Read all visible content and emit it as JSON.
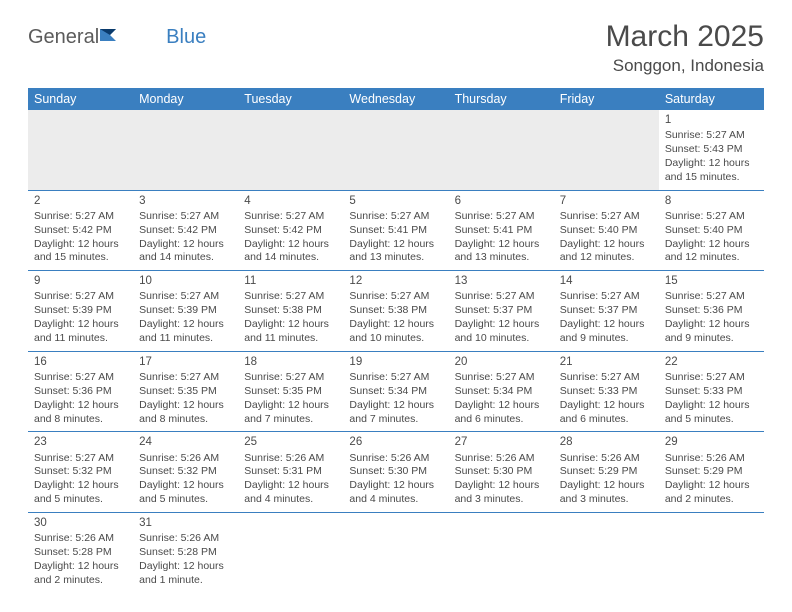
{
  "logo": {
    "text1": "General",
    "text2": "Blue"
  },
  "title": "March 2025",
  "location": "Songgon, Indonesia",
  "colors": {
    "header_bg": "#3a7fc0",
    "text": "#4a4a4a",
    "blank_bg": "#ececec"
  },
  "days": [
    "Sunday",
    "Monday",
    "Tuesday",
    "Wednesday",
    "Thursday",
    "Friday",
    "Saturday"
  ],
  "weeks": [
    [
      null,
      null,
      null,
      null,
      null,
      null,
      {
        "n": "1",
        "sr": "Sunrise: 5:27 AM",
        "ss": "Sunset: 5:43 PM",
        "dl": "Daylight: 12 hours and 15 minutes."
      }
    ],
    [
      {
        "n": "2",
        "sr": "Sunrise: 5:27 AM",
        "ss": "Sunset: 5:42 PM",
        "dl": "Daylight: 12 hours and 15 minutes."
      },
      {
        "n": "3",
        "sr": "Sunrise: 5:27 AM",
        "ss": "Sunset: 5:42 PM",
        "dl": "Daylight: 12 hours and 14 minutes."
      },
      {
        "n": "4",
        "sr": "Sunrise: 5:27 AM",
        "ss": "Sunset: 5:42 PM",
        "dl": "Daylight: 12 hours and 14 minutes."
      },
      {
        "n": "5",
        "sr": "Sunrise: 5:27 AM",
        "ss": "Sunset: 5:41 PM",
        "dl": "Daylight: 12 hours and 13 minutes."
      },
      {
        "n": "6",
        "sr": "Sunrise: 5:27 AM",
        "ss": "Sunset: 5:41 PM",
        "dl": "Daylight: 12 hours and 13 minutes."
      },
      {
        "n": "7",
        "sr": "Sunrise: 5:27 AM",
        "ss": "Sunset: 5:40 PM",
        "dl": "Daylight: 12 hours and 12 minutes."
      },
      {
        "n": "8",
        "sr": "Sunrise: 5:27 AM",
        "ss": "Sunset: 5:40 PM",
        "dl": "Daylight: 12 hours and 12 minutes."
      }
    ],
    [
      {
        "n": "9",
        "sr": "Sunrise: 5:27 AM",
        "ss": "Sunset: 5:39 PM",
        "dl": "Daylight: 12 hours and 11 minutes."
      },
      {
        "n": "10",
        "sr": "Sunrise: 5:27 AM",
        "ss": "Sunset: 5:39 PM",
        "dl": "Daylight: 12 hours and 11 minutes."
      },
      {
        "n": "11",
        "sr": "Sunrise: 5:27 AM",
        "ss": "Sunset: 5:38 PM",
        "dl": "Daylight: 12 hours and 11 minutes."
      },
      {
        "n": "12",
        "sr": "Sunrise: 5:27 AM",
        "ss": "Sunset: 5:38 PM",
        "dl": "Daylight: 12 hours and 10 minutes."
      },
      {
        "n": "13",
        "sr": "Sunrise: 5:27 AM",
        "ss": "Sunset: 5:37 PM",
        "dl": "Daylight: 12 hours and 10 minutes."
      },
      {
        "n": "14",
        "sr": "Sunrise: 5:27 AM",
        "ss": "Sunset: 5:37 PM",
        "dl": "Daylight: 12 hours and 9 minutes."
      },
      {
        "n": "15",
        "sr": "Sunrise: 5:27 AM",
        "ss": "Sunset: 5:36 PM",
        "dl": "Daylight: 12 hours and 9 minutes."
      }
    ],
    [
      {
        "n": "16",
        "sr": "Sunrise: 5:27 AM",
        "ss": "Sunset: 5:36 PM",
        "dl": "Daylight: 12 hours and 8 minutes."
      },
      {
        "n": "17",
        "sr": "Sunrise: 5:27 AM",
        "ss": "Sunset: 5:35 PM",
        "dl": "Daylight: 12 hours and 8 minutes."
      },
      {
        "n": "18",
        "sr": "Sunrise: 5:27 AM",
        "ss": "Sunset: 5:35 PM",
        "dl": "Daylight: 12 hours and 7 minutes."
      },
      {
        "n": "19",
        "sr": "Sunrise: 5:27 AM",
        "ss": "Sunset: 5:34 PM",
        "dl": "Daylight: 12 hours and 7 minutes."
      },
      {
        "n": "20",
        "sr": "Sunrise: 5:27 AM",
        "ss": "Sunset: 5:34 PM",
        "dl": "Daylight: 12 hours and 6 minutes."
      },
      {
        "n": "21",
        "sr": "Sunrise: 5:27 AM",
        "ss": "Sunset: 5:33 PM",
        "dl": "Daylight: 12 hours and 6 minutes."
      },
      {
        "n": "22",
        "sr": "Sunrise: 5:27 AM",
        "ss": "Sunset: 5:33 PM",
        "dl": "Daylight: 12 hours and 5 minutes."
      }
    ],
    [
      {
        "n": "23",
        "sr": "Sunrise: 5:27 AM",
        "ss": "Sunset: 5:32 PM",
        "dl": "Daylight: 12 hours and 5 minutes."
      },
      {
        "n": "24",
        "sr": "Sunrise: 5:26 AM",
        "ss": "Sunset: 5:32 PM",
        "dl": "Daylight: 12 hours and 5 minutes."
      },
      {
        "n": "25",
        "sr": "Sunrise: 5:26 AM",
        "ss": "Sunset: 5:31 PM",
        "dl": "Daylight: 12 hours and 4 minutes."
      },
      {
        "n": "26",
        "sr": "Sunrise: 5:26 AM",
        "ss": "Sunset: 5:30 PM",
        "dl": "Daylight: 12 hours and 4 minutes."
      },
      {
        "n": "27",
        "sr": "Sunrise: 5:26 AM",
        "ss": "Sunset: 5:30 PM",
        "dl": "Daylight: 12 hours and 3 minutes."
      },
      {
        "n": "28",
        "sr": "Sunrise: 5:26 AM",
        "ss": "Sunset: 5:29 PM",
        "dl": "Daylight: 12 hours and 3 minutes."
      },
      {
        "n": "29",
        "sr": "Sunrise: 5:26 AM",
        "ss": "Sunset: 5:29 PM",
        "dl": "Daylight: 12 hours and 2 minutes."
      }
    ],
    [
      {
        "n": "30",
        "sr": "Sunrise: 5:26 AM",
        "ss": "Sunset: 5:28 PM",
        "dl": "Daylight: 12 hours and 2 minutes."
      },
      {
        "n": "31",
        "sr": "Sunrise: 5:26 AM",
        "ss": "Sunset: 5:28 PM",
        "dl": "Daylight: 12 hours and 1 minute."
      },
      null,
      null,
      null,
      null,
      null
    ]
  ]
}
